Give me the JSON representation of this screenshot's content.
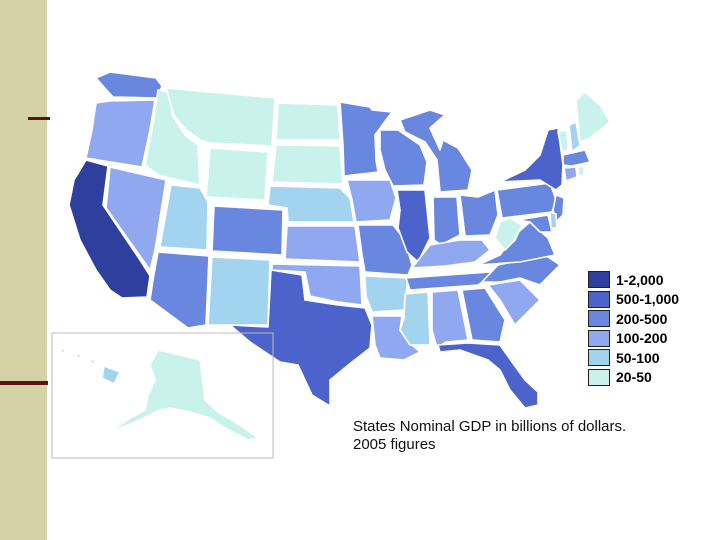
{
  "colors": {
    "sidebar": "#d6d2a8",
    "accent": "#5a1414",
    "bin_1_2000": "#2f3f9e",
    "bin_500_1000": "#4d63cc",
    "bin_200_500": "#6a87e0",
    "bin_100_200": "#90a8ef",
    "bin_50_100": "#a2d3ef",
    "bin_20_50": "#c9f3ea"
  },
  "legend": {
    "items": [
      {
        "label": "1-2,000",
        "color": "#2f3f9e"
      },
      {
        "label": "500-1,000",
        "color": "#4d63cc"
      },
      {
        "label": "200-500",
        "color": "#6a87e0"
      },
      {
        "label": "100-200",
        "color": "#90a8ef"
      },
      {
        "label": "50-100",
        "color": "#a2d3ef"
      },
      {
        "label": "20-50",
        "color": "#c9f3ea"
      }
    ]
  },
  "caption": {
    "line1": "States Nominal GDP in billions of dollars.",
    "line2": "2005 figures"
  },
  "map": {
    "regions": [
      {
        "id": "washington",
        "bin": "200-500"
      },
      {
        "id": "oregon",
        "bin": "100-200"
      },
      {
        "id": "california",
        "bin": "1-2,000"
      },
      {
        "id": "nevada",
        "bin": "100-200"
      },
      {
        "id": "idaho",
        "bin": "20-50"
      },
      {
        "id": "montana",
        "bin": "20-50"
      },
      {
        "id": "wyoming",
        "bin": "20-50"
      },
      {
        "id": "utah",
        "bin": "50-100"
      },
      {
        "id": "arizona",
        "bin": "200-500"
      },
      {
        "id": "colorado",
        "bin": "200-500"
      },
      {
        "id": "new-mexico",
        "bin": "50-100"
      },
      {
        "id": "north-dakota",
        "bin": "20-50"
      },
      {
        "id": "south-dakota",
        "bin": "20-50"
      },
      {
        "id": "nebraska",
        "bin": "50-100"
      },
      {
        "id": "kansas",
        "bin": "100-200"
      },
      {
        "id": "oklahoma",
        "bin": "100-200"
      },
      {
        "id": "texas",
        "bin": "500-1,000"
      },
      {
        "id": "minnesota",
        "bin": "200-500"
      },
      {
        "id": "iowa",
        "bin": "100-200"
      },
      {
        "id": "missouri",
        "bin": "200-500"
      },
      {
        "id": "arkansas",
        "bin": "50-100"
      },
      {
        "id": "louisiana",
        "bin": "100-200"
      },
      {
        "id": "wisconsin",
        "bin": "200-500"
      },
      {
        "id": "illinois",
        "bin": "500-1,000"
      },
      {
        "id": "michigan",
        "bin": "200-500"
      },
      {
        "id": "indiana",
        "bin": "200-500"
      },
      {
        "id": "ohio",
        "bin": "200-500"
      },
      {
        "id": "kentucky",
        "bin": "100-200"
      },
      {
        "id": "tennessee",
        "bin": "200-500"
      },
      {
        "id": "mississippi",
        "bin": "50-100"
      },
      {
        "id": "alabama",
        "bin": "100-200"
      },
      {
        "id": "georgia",
        "bin": "200-500"
      },
      {
        "id": "florida",
        "bin": "500-1,000"
      },
      {
        "id": "south-carolina",
        "bin": "100-200"
      },
      {
        "id": "north-carolina",
        "bin": "200-500"
      },
      {
        "id": "virginia",
        "bin": "200-500"
      },
      {
        "id": "west-virginia",
        "bin": "20-50"
      },
      {
        "id": "pennsylvania",
        "bin": "200-500"
      },
      {
        "id": "new-york",
        "bin": "500-1,000"
      },
      {
        "id": "new-jersey",
        "bin": "200-500"
      },
      {
        "id": "maryland",
        "bin": "200-500"
      },
      {
        "id": "delaware",
        "bin": "50-100"
      },
      {
        "id": "vermont",
        "bin": "20-50"
      },
      {
        "id": "new-hampshire",
        "bin": "50-100"
      },
      {
        "id": "maine",
        "bin": "20-50"
      },
      {
        "id": "massachusetts",
        "bin": "200-500"
      },
      {
        "id": "connecticut",
        "bin": "100-200"
      },
      {
        "id": "rhode-island",
        "bin": "20-50"
      },
      {
        "id": "alaska",
        "bin": "20-50"
      },
      {
        "id": "hawaii",
        "bin": "50-100"
      }
    ]
  }
}
